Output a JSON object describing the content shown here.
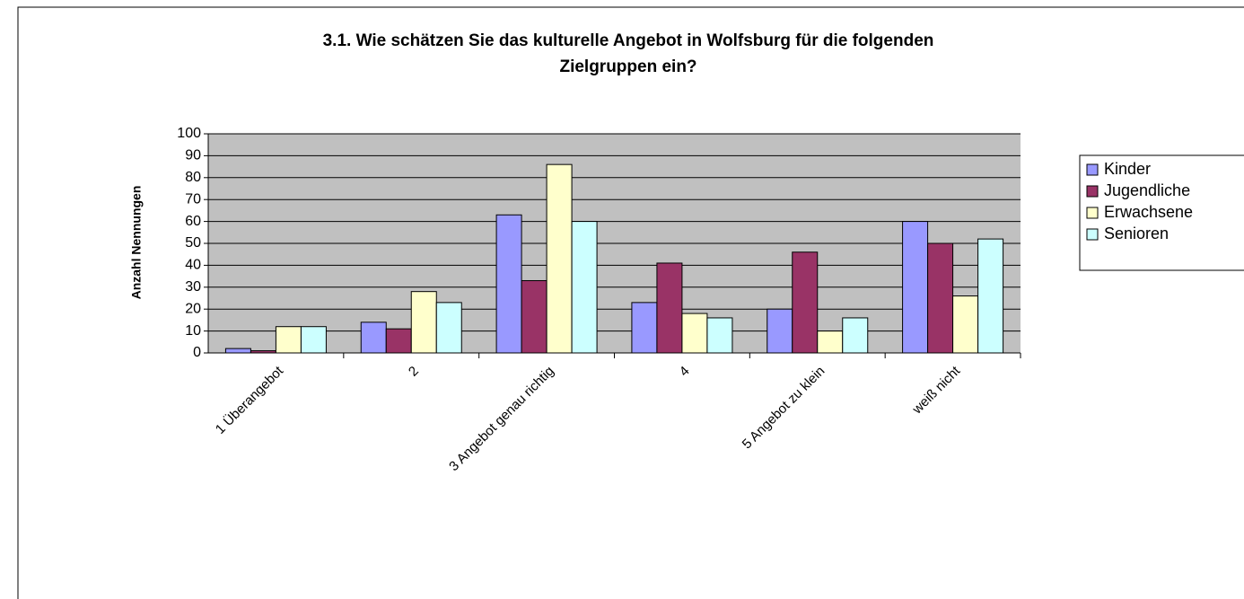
{
  "chart_data": {
    "type": "bar",
    "title": [
      "3.1. Wie schätzen Sie das kulturelle Angebot in Wolfsburg für die folgenden",
      "Zielgruppen ein?"
    ],
    "y_label": "Anzahl Nennungen",
    "categories": [
      "1 Überangebot",
      "2",
      "3  Angebot genau richtig",
      "4",
      "5  Angebot zu klein",
      "weiß nicht"
    ],
    "series": [
      {
        "name": "Kinder",
        "color": "#9999ff",
        "values": [
          2,
          14,
          63,
          23,
          20,
          60
        ]
      },
      {
        "name": "Jugendliche",
        "color": "#993366",
        "values": [
          1,
          11,
          33,
          41,
          46,
          50
        ]
      },
      {
        "name": "Erwachsene",
        "color": "#ffffcc",
        "values": [
          12,
          28,
          86,
          18,
          10,
          26
        ]
      },
      {
        "name": "Senioren",
        "color": "#ccffff",
        "values": [
          12,
          23,
          60,
          16,
          16,
          52
        ]
      }
    ],
    "ylim": [
      0,
      100
    ],
    "yticks": [
      0,
      10,
      20,
      30,
      40,
      50,
      60,
      70,
      80,
      90,
      100
    ],
    "grid": true,
    "legend": "right",
    "plot_background": "#c0c0c0"
  }
}
